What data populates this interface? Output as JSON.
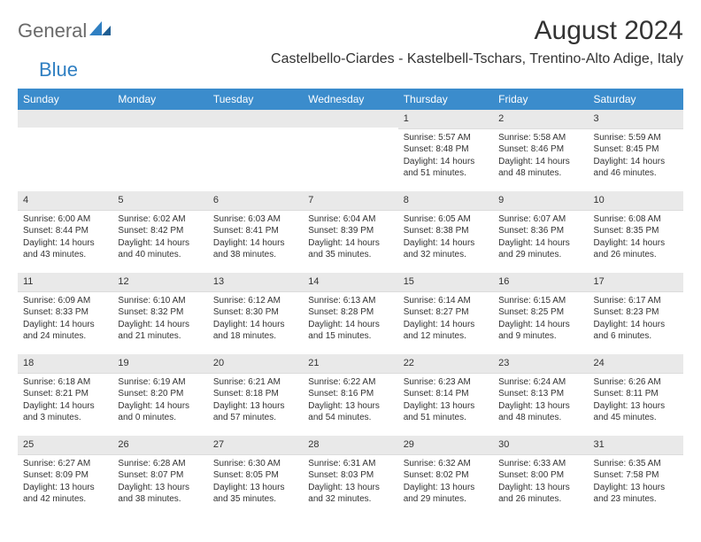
{
  "brand": {
    "part1": "General",
    "part2": "Blue"
  },
  "title": "August 2024",
  "location": "Castelbello-Ciardes - Kastelbell-Tschars, Trentino-Alto Adige, Italy",
  "colors": {
    "header_bg": "#3b8ccc",
    "header_text": "#ffffff",
    "daynum_bg": "#e9e9e9",
    "text": "#333333",
    "logo_gray": "#6a6a6a",
    "logo_blue": "#2f7fc2",
    "page_bg": "#ffffff"
  },
  "weekdays": [
    "Sunday",
    "Monday",
    "Tuesday",
    "Wednesday",
    "Thursday",
    "Friday",
    "Saturday"
  ],
  "grid": [
    [
      null,
      null,
      null,
      null,
      {
        "n": "1",
        "sr": "Sunrise: 5:57 AM",
        "ss": "Sunset: 8:48 PM",
        "d1": "Daylight: 14 hours",
        "d2": "and 51 minutes."
      },
      {
        "n": "2",
        "sr": "Sunrise: 5:58 AM",
        "ss": "Sunset: 8:46 PM",
        "d1": "Daylight: 14 hours",
        "d2": "and 48 minutes."
      },
      {
        "n": "3",
        "sr": "Sunrise: 5:59 AM",
        "ss": "Sunset: 8:45 PM",
        "d1": "Daylight: 14 hours",
        "d2": "and 46 minutes."
      }
    ],
    [
      {
        "n": "4",
        "sr": "Sunrise: 6:00 AM",
        "ss": "Sunset: 8:44 PM",
        "d1": "Daylight: 14 hours",
        "d2": "and 43 minutes."
      },
      {
        "n": "5",
        "sr": "Sunrise: 6:02 AM",
        "ss": "Sunset: 8:42 PM",
        "d1": "Daylight: 14 hours",
        "d2": "and 40 minutes."
      },
      {
        "n": "6",
        "sr": "Sunrise: 6:03 AM",
        "ss": "Sunset: 8:41 PM",
        "d1": "Daylight: 14 hours",
        "d2": "and 38 minutes."
      },
      {
        "n": "7",
        "sr": "Sunrise: 6:04 AM",
        "ss": "Sunset: 8:39 PM",
        "d1": "Daylight: 14 hours",
        "d2": "and 35 minutes."
      },
      {
        "n": "8",
        "sr": "Sunrise: 6:05 AM",
        "ss": "Sunset: 8:38 PM",
        "d1": "Daylight: 14 hours",
        "d2": "and 32 minutes."
      },
      {
        "n": "9",
        "sr": "Sunrise: 6:07 AM",
        "ss": "Sunset: 8:36 PM",
        "d1": "Daylight: 14 hours",
        "d2": "and 29 minutes."
      },
      {
        "n": "10",
        "sr": "Sunrise: 6:08 AM",
        "ss": "Sunset: 8:35 PM",
        "d1": "Daylight: 14 hours",
        "d2": "and 26 minutes."
      }
    ],
    [
      {
        "n": "11",
        "sr": "Sunrise: 6:09 AM",
        "ss": "Sunset: 8:33 PM",
        "d1": "Daylight: 14 hours",
        "d2": "and 24 minutes."
      },
      {
        "n": "12",
        "sr": "Sunrise: 6:10 AM",
        "ss": "Sunset: 8:32 PM",
        "d1": "Daylight: 14 hours",
        "d2": "and 21 minutes."
      },
      {
        "n": "13",
        "sr": "Sunrise: 6:12 AM",
        "ss": "Sunset: 8:30 PM",
        "d1": "Daylight: 14 hours",
        "d2": "and 18 minutes."
      },
      {
        "n": "14",
        "sr": "Sunrise: 6:13 AM",
        "ss": "Sunset: 8:28 PM",
        "d1": "Daylight: 14 hours",
        "d2": "and 15 minutes."
      },
      {
        "n": "15",
        "sr": "Sunrise: 6:14 AM",
        "ss": "Sunset: 8:27 PM",
        "d1": "Daylight: 14 hours",
        "d2": "and 12 minutes."
      },
      {
        "n": "16",
        "sr": "Sunrise: 6:15 AM",
        "ss": "Sunset: 8:25 PM",
        "d1": "Daylight: 14 hours",
        "d2": "and 9 minutes."
      },
      {
        "n": "17",
        "sr": "Sunrise: 6:17 AM",
        "ss": "Sunset: 8:23 PM",
        "d1": "Daylight: 14 hours",
        "d2": "and 6 minutes."
      }
    ],
    [
      {
        "n": "18",
        "sr": "Sunrise: 6:18 AM",
        "ss": "Sunset: 8:21 PM",
        "d1": "Daylight: 14 hours",
        "d2": "and 3 minutes."
      },
      {
        "n": "19",
        "sr": "Sunrise: 6:19 AM",
        "ss": "Sunset: 8:20 PM",
        "d1": "Daylight: 14 hours",
        "d2": "and 0 minutes."
      },
      {
        "n": "20",
        "sr": "Sunrise: 6:21 AM",
        "ss": "Sunset: 8:18 PM",
        "d1": "Daylight: 13 hours",
        "d2": "and 57 minutes."
      },
      {
        "n": "21",
        "sr": "Sunrise: 6:22 AM",
        "ss": "Sunset: 8:16 PM",
        "d1": "Daylight: 13 hours",
        "d2": "and 54 minutes."
      },
      {
        "n": "22",
        "sr": "Sunrise: 6:23 AM",
        "ss": "Sunset: 8:14 PM",
        "d1": "Daylight: 13 hours",
        "d2": "and 51 minutes."
      },
      {
        "n": "23",
        "sr": "Sunrise: 6:24 AM",
        "ss": "Sunset: 8:13 PM",
        "d1": "Daylight: 13 hours",
        "d2": "and 48 minutes."
      },
      {
        "n": "24",
        "sr": "Sunrise: 6:26 AM",
        "ss": "Sunset: 8:11 PM",
        "d1": "Daylight: 13 hours",
        "d2": "and 45 minutes."
      }
    ],
    [
      {
        "n": "25",
        "sr": "Sunrise: 6:27 AM",
        "ss": "Sunset: 8:09 PM",
        "d1": "Daylight: 13 hours",
        "d2": "and 42 minutes."
      },
      {
        "n": "26",
        "sr": "Sunrise: 6:28 AM",
        "ss": "Sunset: 8:07 PM",
        "d1": "Daylight: 13 hours",
        "d2": "and 38 minutes."
      },
      {
        "n": "27",
        "sr": "Sunrise: 6:30 AM",
        "ss": "Sunset: 8:05 PM",
        "d1": "Daylight: 13 hours",
        "d2": "and 35 minutes."
      },
      {
        "n": "28",
        "sr": "Sunrise: 6:31 AM",
        "ss": "Sunset: 8:03 PM",
        "d1": "Daylight: 13 hours",
        "d2": "and 32 minutes."
      },
      {
        "n": "29",
        "sr": "Sunrise: 6:32 AM",
        "ss": "Sunset: 8:02 PM",
        "d1": "Daylight: 13 hours",
        "d2": "and 29 minutes."
      },
      {
        "n": "30",
        "sr": "Sunrise: 6:33 AM",
        "ss": "Sunset: 8:00 PM",
        "d1": "Daylight: 13 hours",
        "d2": "and 26 minutes."
      },
      {
        "n": "31",
        "sr": "Sunrise: 6:35 AM",
        "ss": "Sunset: 7:58 PM",
        "d1": "Daylight: 13 hours",
        "d2": "and 23 minutes."
      }
    ]
  ]
}
